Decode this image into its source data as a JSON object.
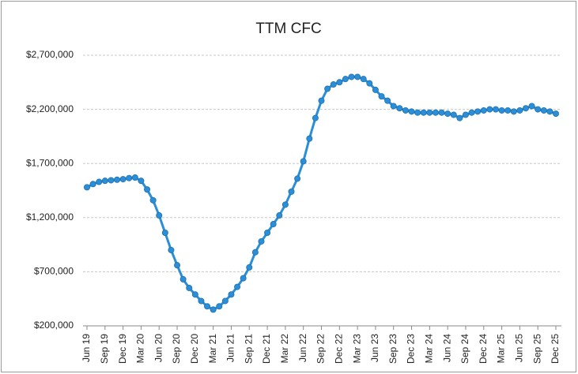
{
  "chart_data": {
    "type": "line",
    "title": "TTM CFC",
    "color": "#2b8fd8",
    "grid": true,
    "categories": [
      "Jun 19",
      null,
      null,
      "Sep 19",
      null,
      null,
      "Dec 19",
      null,
      null,
      "Mar 20",
      null,
      null,
      "Jun 20",
      null,
      null,
      "Sep 20",
      null,
      null,
      "Dec 20",
      null,
      null,
      "Mar 21",
      null,
      null,
      "Jun 21",
      null,
      null,
      "Sep 21",
      null,
      null,
      "Dec 21",
      null,
      null,
      "Mar 22",
      null,
      null,
      "Jun 22",
      null,
      null,
      "Sep 22",
      null,
      null,
      "Dec 22",
      null,
      null,
      "Mar 23",
      null,
      null,
      "Jun 23",
      null,
      null,
      "Sep 23",
      null,
      null,
      "Dec 23",
      null,
      null,
      "Mar 24",
      null,
      null,
      "Jun 24",
      null,
      null,
      "Sep 24",
      null,
      null,
      "Dec 24",
      null,
      null,
      "Mar 25",
      null,
      null,
      "Jun 25",
      null,
      null,
      "Sep 25",
      null,
      null,
      "Dec 25"
    ],
    "values": [
      1480000,
      1510000,
      1530000,
      1540000,
      1545000,
      1550000,
      1555000,
      1565000,
      1570000,
      1540000,
      1460000,
      1360000,
      1220000,
      1060000,
      900000,
      760000,
      630000,
      550000,
      490000,
      430000,
      380000,
      350000,
      380000,
      430000,
      490000,
      560000,
      640000,
      740000,
      880000,
      980000,
      1060000,
      1140000,
      1220000,
      1320000,
      1440000,
      1560000,
      1720000,
      1930000,
      2120000,
      2280000,
      2390000,
      2430000,
      2450000,
      2480000,
      2500000,
      2500000,
      2480000,
      2440000,
      2380000,
      2320000,
      2280000,
      2230000,
      2210000,
      2190000,
      2180000,
      2170000,
      2170000,
      2170000,
      2170000,
      2170000,
      2160000,
      2150000,
      2120000,
      2150000,
      2170000,
      2180000,
      2190000,
      2200000,
      2200000,
      2190000,
      2190000,
      2180000,
      2190000,
      2210000,
      2230000,
      2200000,
      2190000,
      2180000,
      2160000
    ],
    "ylim": [
      200000,
      2700000
    ],
    "yticks": [
      {
        "value": 200000,
        "label": "$200,000"
      },
      {
        "value": 700000,
        "label": "$700,000"
      },
      {
        "value": 1200000,
        "label": "$1,200,000"
      },
      {
        "value": 1700000,
        "label": "$1,700,000"
      },
      {
        "value": 2200000,
        "label": "$2,200,000"
      },
      {
        "value": 2700000,
        "label": "$2,700,000"
      }
    ]
  }
}
